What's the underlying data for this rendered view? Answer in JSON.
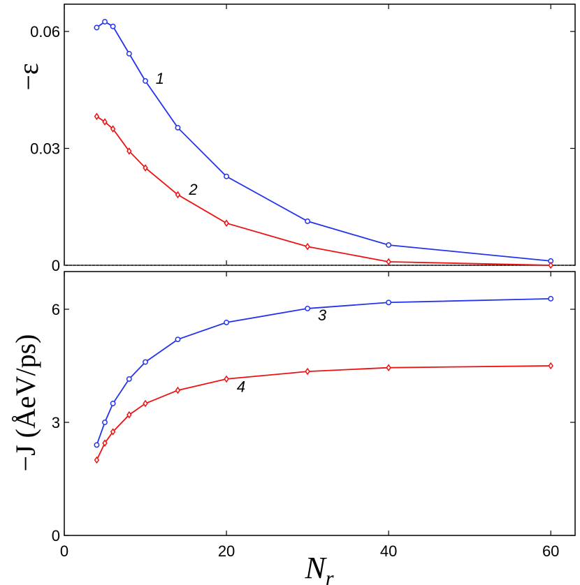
{
  "chart_data": [
    {
      "type": "line",
      "panel": "top",
      "ylabel": "−ε",
      "xlim": [
        0,
        63
      ],
      "ylim": [
        0,
        0.067
      ],
      "yticks": [
        0,
        0.03,
        0.06
      ],
      "ytick_labels": [
        "0",
        "0.03",
        "0.06"
      ],
      "reference_line": {
        "y": 0,
        "style": "dotted"
      },
      "series": [
        {
          "name": "1",
          "color": "#2233ee",
          "marker": "circle",
          "x": [
            4,
            5,
            6,
            8,
            10,
            14,
            20,
            30,
            40,
            60
          ],
          "y": [
            0.061,
            0.0625,
            0.0613,
            0.0543,
            0.0473,
            0.0353,
            0.0228,
            0.0113,
            0.0052,
            0.0011
          ]
        },
        {
          "name": "2",
          "color": "#ee1111",
          "marker": "diamond",
          "x": [
            4,
            5,
            6,
            8,
            10,
            14,
            20,
            30,
            40,
            60
          ],
          "y": [
            0.0382,
            0.0368,
            0.035,
            0.0293,
            0.025,
            0.0181,
            0.0108,
            0.0048,
            0.0009,
            0.0
          ]
        }
      ],
      "annotations": [
        {
          "text": "1",
          "x": 11.8,
          "y": 0.048
        },
        {
          "text": "2",
          "x": 15.9,
          "y": 0.0195
        }
      ]
    },
    {
      "type": "line",
      "panel": "bottom",
      "ylabel": "−J (ÅeV/ps)",
      "xlabel": "N",
      "xlabel_sub": "r",
      "xlim": [
        0,
        63
      ],
      "ylim": [
        0,
        7
      ],
      "xticks": [
        0,
        20,
        40,
        60
      ],
      "xtick_labels": [
        "0",
        "20",
        "40",
        "60"
      ],
      "yticks": [
        0,
        3,
        6
      ],
      "ytick_labels": [
        "0",
        "3",
        "6"
      ],
      "series": [
        {
          "name": "3",
          "color": "#2233ee",
          "marker": "circle",
          "x": [
            4,
            5,
            6,
            8,
            10,
            14,
            20,
            30,
            40,
            60
          ],
          "y": [
            2.4,
            3.0,
            3.5,
            4.15,
            4.6,
            5.2,
            5.65,
            6.02,
            6.18,
            6.28
          ]
        },
        {
          "name": "4",
          "color": "#ee1111",
          "marker": "diamond",
          "x": [
            4,
            5,
            6,
            8,
            10,
            14,
            20,
            30,
            40,
            60
          ],
          "y": [
            2.0,
            2.45,
            2.75,
            3.2,
            3.5,
            3.85,
            4.15,
            4.35,
            4.45,
            4.5
          ]
        }
      ],
      "annotations": [
        {
          "text": "3",
          "x": 31.8,
          "y": 5.85
        },
        {
          "text": "4",
          "x": 21.8,
          "y": 3.95
        }
      ]
    }
  ]
}
